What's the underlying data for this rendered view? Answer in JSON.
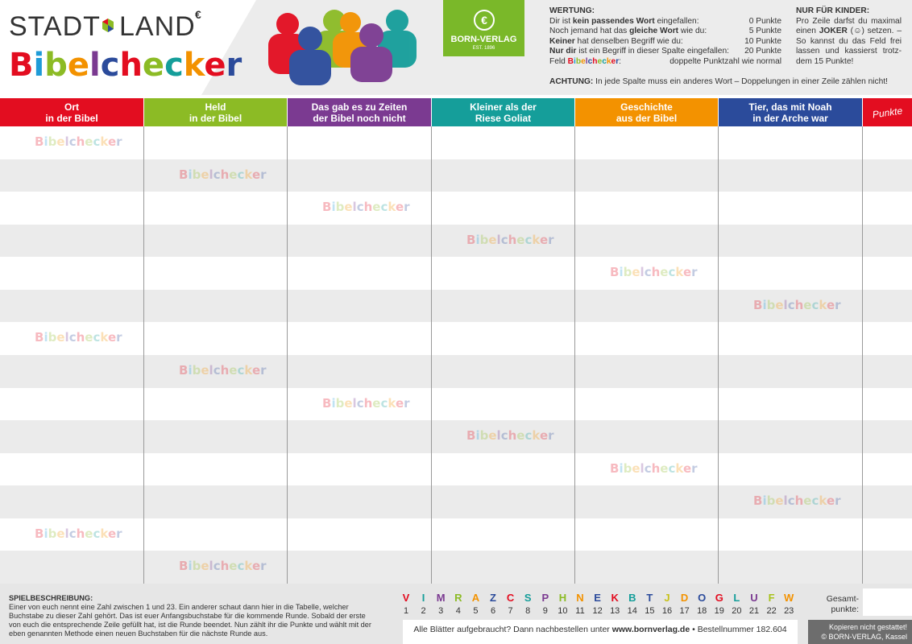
{
  "header": {
    "logo_word1": "STADT",
    "logo_word2": "LAND",
    "brand": "Bibelchecker",
    "brand_colors": [
      "#e30d20",
      "#1f9bd7",
      "#8cbb25",
      "#f39200",
      "#7b3a91",
      "#2b4b9b",
      "#e30d20",
      "#8cbb25",
      "#159e9a",
      "#f39200",
      "#e30d20",
      "#2b4b9b"
    ]
  },
  "publisher": {
    "name": "BORN-VERLAG",
    "est": "EST. 1896",
    "color": "#7ab829"
  },
  "scoring": {
    "title": "WERTUNG:",
    "rows": [
      {
        "parts": [
          {
            "t": "Dir ist "
          },
          {
            "t": "kein passendes Wort",
            "b": true
          },
          {
            "t": " eingefallen:"
          }
        ],
        "points": "0 Punkte"
      },
      {
        "parts": [
          {
            "t": "Noch jemand hat das "
          },
          {
            "t": "gleiche Wort",
            "b": true
          },
          {
            "t": " wie du:"
          }
        ],
        "points": "5 Punkte"
      },
      {
        "parts": [
          {
            "t": "Keiner",
            "b": true
          },
          {
            "t": " hat denselben Begriff wie du:"
          }
        ],
        "points": "10 Punkte"
      },
      {
        "parts": [
          {
            "t": "Nur dir",
            "b": true
          },
          {
            "t": " ist ein Begriff in dieser Spalte eingefallen:"
          }
        ],
        "points": "20 Punkte"
      },
      {
        "parts": [
          {
            "t": "Feld "
          },
          {
            "t": "Bibelchecker",
            "brand": true
          },
          {
            "t": ":"
          }
        ],
        "points": "doppelte Punktzahl wie normal"
      }
    ],
    "warning": [
      {
        "t": "ACHTUNG:",
        "b": true
      },
      {
        "t": " In jede Spalte muss ein anderes Wort – Doppelungen in einer Zeile zählen nicht!"
      }
    ]
  },
  "kids": {
    "title": "NUR FÜR KINDER:",
    "parts": [
      {
        "t": "Pro Zeile darfst du maximal einen "
      },
      {
        "t": "JOKER",
        "b": true
      },
      {
        "t": " (☺) setzen. – So kannst du das Feld frei lassen und kassierst trotz­dem 15 Punkte!"
      }
    ]
  },
  "table": {
    "columns": [
      {
        "lines": [
          "Ort",
          "in der Bibel"
        ],
        "color": "#e30d20"
      },
      {
        "lines": [
          "Held",
          "in der Bibel"
        ],
        "color": "#8cbb25"
      },
      {
        "lines": [
          "Das gab es zu Zeiten",
          "der Bibel noch nicht"
        ],
        "color": "#7b3a91"
      },
      {
        "lines": [
          "Kleiner als der",
          "Riese Goliat"
        ],
        "color": "#159e9a"
      },
      {
        "lines": [
          "Geschichte",
          "aus der Bibel"
        ],
        "color": "#f39200"
      },
      {
        "lines": [
          "Tier, das mit Noah",
          "in der Arche war"
        ],
        "color": "#2b4b9b"
      }
    ],
    "points_header": "Punkte",
    "points_color": "#e30d20"
  },
  "footer": {
    "description_title": "SPIELBESCHREIBUNG:",
    "description": "Einer von euch nennt eine Zahl zwischen 1 und 23. Ein anderer schaut dann hier in die Tabelle, welcher Buchstabe zu dieser Zahl gehört. Das ist euer Anfangsbuchstabe für die kommende Runde. Sobald der erste von euch die entsprechende Zeile gefüllt hat, ist die Runde beendet. Nun zählt ihr die Punkte und wählt mit der eben genannten Methode einen neuen Buchstaben für die nächste Runde aus.",
    "letters": [
      "V",
      "I",
      "M",
      "R",
      "A",
      "Z",
      "C",
      "S",
      "P",
      "H",
      "N",
      "E",
      "K",
      "B",
      "T",
      "J",
      "D",
      "O",
      "G",
      "L",
      "U",
      "F",
      "W"
    ],
    "letter_colors": [
      "#e30d20",
      "#159e9a",
      "#7b3a91",
      "#8cbb25",
      "#f39200",
      "#2b4b9b",
      "#e30d20",
      "#159e9a",
      "#7b3a91",
      "#8cbb25",
      "#f39200",
      "#2b4b9b",
      "#e30d20",
      "#159e9a",
      "#2b4b9b",
      "#c7c21a",
      "#f39200",
      "#2b4b9b",
      "#e30d20",
      "#159e9a",
      "#7b3a91",
      "#a8c21a",
      "#f39200"
    ],
    "numbers": [
      1,
      2,
      3,
      4,
      5,
      6,
      7,
      8,
      9,
      10,
      11,
      12,
      13,
      14,
      15,
      16,
      17,
      18,
      19,
      20,
      21,
      22,
      23
    ],
    "total_label": [
      "Gesamt-",
      "punkte:"
    ],
    "order": [
      {
        "t": "Alle Blätter aufgebraucht? Dann nachbestellen unter "
      },
      {
        "t": "www.bornverlag.de",
        "b": true
      },
      {
        "t": " • Bestellnummer 182.604"
      }
    ],
    "copyright": [
      "Kopieren nicht gestattet!",
      "© BORN-VERLAG, Kassel"
    ]
  }
}
